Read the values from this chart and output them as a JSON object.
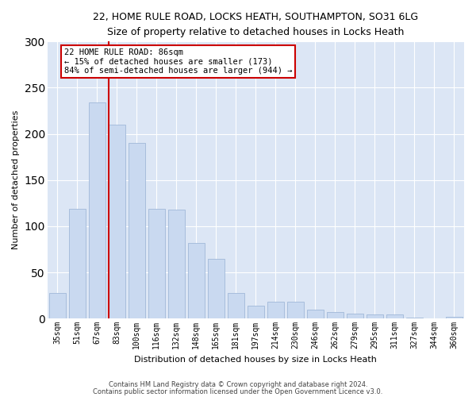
{
  "title_line1": "22, HOME RULE ROAD, LOCKS HEATH, SOUTHAMPTON, SO31 6LG",
  "title_line2": "Size of property relative to detached houses in Locks Heath",
  "xlabel": "Distribution of detached houses by size in Locks Heath",
  "ylabel": "Number of detached properties",
  "footnote1": "Contains HM Land Registry data © Crown copyright and database right 2024.",
  "footnote2": "Contains public sector information licensed under the Open Government Licence v3.0.",
  "annotation_line1": "22 HOME RULE ROAD: 86sqm",
  "annotation_line2": "← 15% of detached houses are smaller (173)",
  "annotation_line3": "84% of semi-detached houses are larger (944) →",
  "bar_color": "#c9d9f0",
  "bar_edgecolor": "#a0b8d8",
  "vline_color": "#cc0000",
  "annotation_box_edgecolor": "#cc0000",
  "background_color": "#dce6f5",
  "grid_color": "#ffffff",
  "categories": [
    "35sqm",
    "51sqm",
    "67sqm",
    "83sqm",
    "100sqm",
    "116sqm",
    "132sqm",
    "148sqm",
    "165sqm",
    "181sqm",
    "197sqm",
    "214sqm",
    "230sqm",
    "246sqm",
    "262sqm",
    "279sqm",
    "295sqm",
    "311sqm",
    "327sqm",
    "344sqm",
    "360sqm"
  ],
  "values": [
    28,
    119,
    234,
    210,
    190,
    119,
    118,
    82,
    65,
    28,
    14,
    18,
    18,
    10,
    7,
    5,
    4,
    4,
    1,
    0,
    2
  ],
  "ylim": [
    0,
    300
  ],
  "yticks": [
    0,
    50,
    100,
    150,
    200,
    250,
    300
  ],
  "vline_x": 2.575,
  "figsize": [
    6.0,
    5.0
  ],
  "dpi": 100,
  "title_fontsize": 9,
  "subtitle_fontsize": 8.5,
  "axis_label_fontsize": 8,
  "tick_fontsize": 7,
  "annotation_fontsize": 7.5,
  "footnote_fontsize": 6
}
